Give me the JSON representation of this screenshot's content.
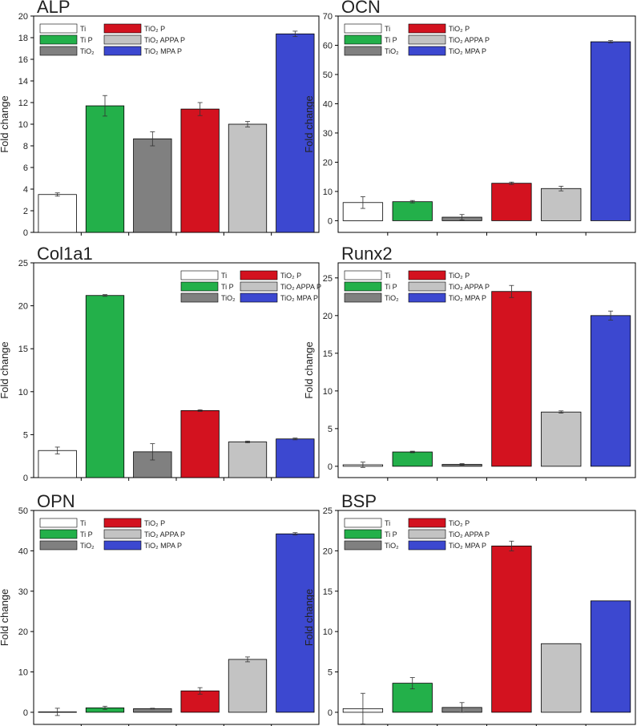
{
  "colors": {
    "Ti": "#ffffff",
    "Ti P": "#23b04a",
    "TiO2": "#808080",
    "TiO2 P": "#d3121f",
    "TiO2 APPA P": "#c3c3c3",
    "TiO2 MPA P": "#3c48d0"
  },
  "chart_data": [
    {
      "type": "bar",
      "title": "ALP",
      "ylabel": "Fold change",
      "ylim": [
        0,
        20
      ],
      "yticks": [
        0,
        2,
        4,
        6,
        8,
        10,
        12,
        14,
        16,
        18,
        20
      ],
      "categories": [
        "Ti",
        "Ti P",
        "TiO2",
        "TiO2 P",
        "TiO2 APPA P",
        "TiO2 MPA P"
      ],
      "values": [
        3.5,
        11.7,
        8.65,
        11.4,
        10.0,
        18.35
      ],
      "errors": [
        0.15,
        0.95,
        0.65,
        0.6,
        0.25,
        0.25
      ],
      "legend_labels": [
        "Ti",
        "Ti P",
        "TiO₂",
        "TiO₂ P",
        "TiO₂ APPA P",
        "TiO₂ MPA P"
      ],
      "legend_position": "top-left"
    },
    {
      "type": "bar",
      "title": "OCN",
      "ylabel": "Fold change",
      "ylim": [
        -4,
        70
      ],
      "yticks": [
        0,
        10,
        20,
        30,
        40,
        50,
        60,
        70
      ],
      "categories": [
        "Ti",
        "Ti P",
        "TiO2",
        "TiO2 P",
        "TiO2 APPA P",
        "TiO2 MPA P"
      ],
      "values": [
        6.2,
        6.5,
        1.2,
        12.8,
        11.0,
        61.2
      ],
      "errors": [
        2.0,
        0.4,
        0.9,
        0.4,
        0.8,
        0.4
      ],
      "legend_labels": [
        "Ti",
        "Ti P",
        "TiO₂",
        "TiO₂ P",
        "TiO₂ APPA P",
        "TiO₂ MPA P"
      ],
      "legend_position": "top-left"
    },
    {
      "type": "bar",
      "title": "Col1a1",
      "ylabel": "Fold change",
      "ylim": [
        0,
        25
      ],
      "yticks": [
        0,
        5,
        10,
        15,
        20,
        25
      ],
      "categories": [
        "Ti",
        "Ti P",
        "TiO2",
        "TiO2 P",
        "TiO2 APPA P",
        "TiO2 MPA P"
      ],
      "values": [
        3.15,
        21.2,
        3.0,
        7.8,
        4.15,
        4.5
      ],
      "errors": [
        0.4,
        0.1,
        0.95,
        0.1,
        0.1,
        0.1
      ],
      "legend_labels": [
        "Ti",
        "Ti P",
        "TiO₂",
        "TiO₂ P",
        "TiO₂ APPA P",
        "TiO₂ MPA P"
      ],
      "legend_position": "top-right"
    },
    {
      "type": "bar",
      "title": "Runx2",
      "ylabel": "Fold change",
      "ylim": [
        -1.5,
        27
      ],
      "yticks": [
        0,
        5,
        10,
        15,
        20,
        25
      ],
      "categories": [
        "Ti",
        "Ti P",
        "TiO2",
        "TiO2 P",
        "TiO2 APPA P",
        "TiO2 MPA P"
      ],
      "values": [
        0.2,
        1.9,
        0.25,
        23.2,
        7.2,
        20.0
      ],
      "errors": [
        0.35,
        0.1,
        0.1,
        0.8,
        0.15,
        0.6
      ],
      "legend_labels": [
        "Ti",
        "Ti P",
        "TiO₂",
        "TiO₂ P",
        "TiO₂ APPA P",
        "TiO₂ MPA P"
      ],
      "legend_position": "top-left"
    },
    {
      "type": "bar",
      "title": "OPN",
      "ylabel": "Fold change",
      "ylim": [
        -3,
        50
      ],
      "yticks": [
        0,
        10,
        20,
        30,
        40,
        50
      ],
      "categories": [
        "Ti",
        "Ti P",
        "TiO2",
        "TiO2 P",
        "TiO2 APPA P",
        "TiO2 MPA P"
      ],
      "values": [
        0.1,
        1.1,
        0.9,
        5.3,
        13.1,
        44.2
      ],
      "errors": [
        0.9,
        0.4,
        0.1,
        0.8,
        0.6,
        0.3
      ],
      "legend_labels": [
        "Ti",
        "Ti P",
        "TiO₂",
        "TiO₂ P",
        "TiO₂ APPA P",
        "TiO₂ MPA P"
      ],
      "legend_position": "top-left"
    },
    {
      "type": "bar",
      "title": "BSP",
      "ylabel": "Fold change",
      "ylim": [
        -1.5,
        25
      ],
      "yticks": [
        0,
        5,
        10,
        15,
        20,
        25
      ],
      "categories": [
        "Ti",
        "Ti P",
        "TiO2",
        "TiO2 P",
        "TiO2 APPA P",
        "TiO2 MPA P"
      ],
      "values": [
        0.45,
        3.6,
        0.6,
        20.6,
        8.5,
        13.8
      ],
      "errors": [
        1.9,
        0.7,
        0.6,
        0.6,
        0.0,
        0.0
      ],
      "legend_labels": [
        "Ti",
        "Ti P",
        "TiO₂",
        "TiO₂ P",
        "TiO₂ APPA P",
        "TiO₂ MPA P"
      ],
      "legend_position": "top-left"
    }
  ]
}
